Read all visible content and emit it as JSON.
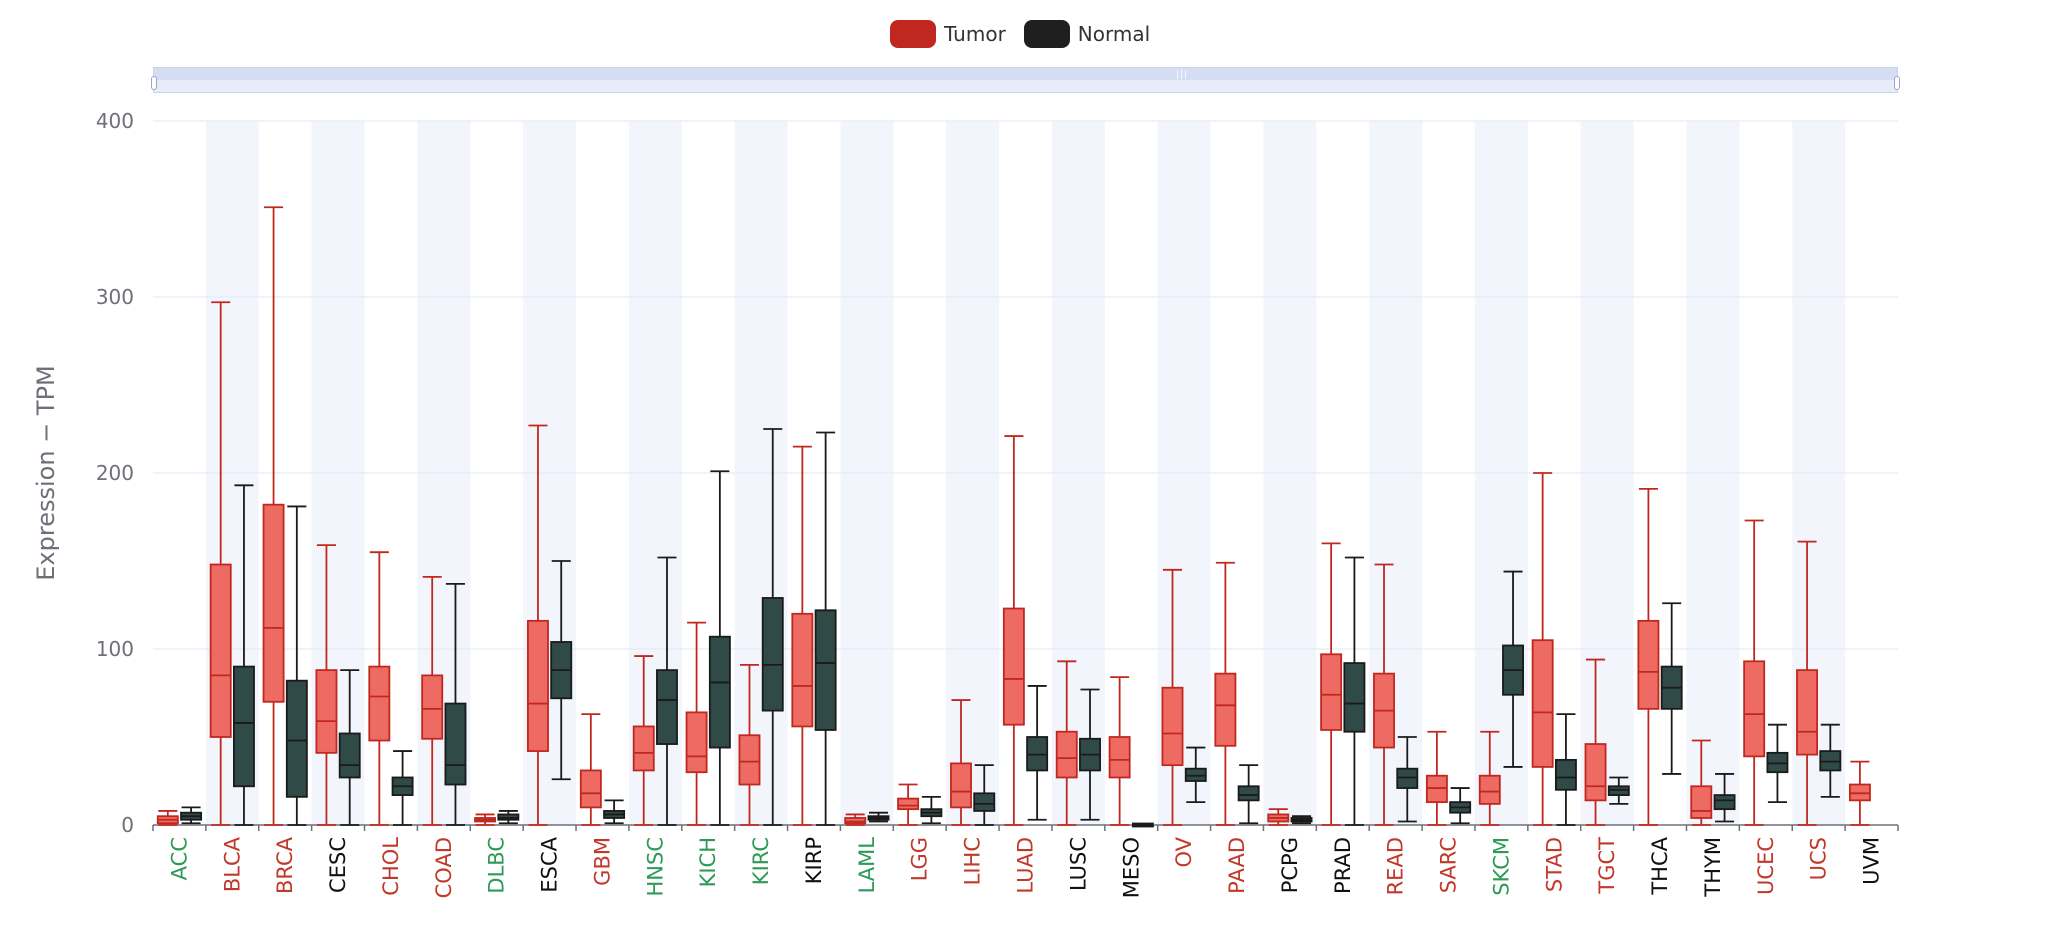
{
  "legend": {
    "items": [
      {
        "label": "Tumor",
        "color": "#c0281f"
      },
      {
        "label": "Normal",
        "color": "#1f1f1f"
      }
    ]
  },
  "chart_data": {
    "type": "boxplot",
    "ylabel": "Expression − TPM",
    "ylim": [
      0,
      400
    ],
    "yticks": [
      0,
      100,
      200,
      300,
      400
    ],
    "grid": true,
    "legend_position": "top-center",
    "colors": {
      "tumor_fill": "#ee6b63",
      "tumor_stroke": "#c0281f",
      "normal_fill": "#2f4a47",
      "normal_stroke": "#1a1a1a",
      "label_up": "#c0392b",
      "label_down": "#2e9a57",
      "label_ns": "#111111",
      "band": "#f2f5fb"
    },
    "categories": [
      {
        "name": "ACC",
        "status": "down",
        "tumor": [
          0,
          1,
          3,
          5,
          8
        ],
        "normal": [
          1,
          3,
          5,
          7,
          10
        ]
      },
      {
        "name": "BLCA",
        "status": "up",
        "tumor": [
          0,
          50,
          85,
          148,
          297
        ],
        "normal": [
          0,
          22,
          58,
          90,
          193
        ]
      },
      {
        "name": "BRCA",
        "status": "up",
        "tumor": [
          0,
          70,
          112,
          182,
          351
        ],
        "normal": [
          0,
          16,
          48,
          82,
          181
        ]
      },
      {
        "name": "CESC",
        "status": "ns",
        "tumor": [
          0,
          41,
          59,
          88,
          159
        ],
        "normal": [
          0,
          27,
          34,
          52,
          88
        ]
      },
      {
        "name": "CHOL",
        "status": "up",
        "tumor": [
          0,
          48,
          73,
          90,
          155
        ],
        "normal": [
          0,
          17,
          22,
          27,
          42
        ]
      },
      {
        "name": "COAD",
        "status": "up",
        "tumor": [
          0,
          49,
          66,
          85,
          141
        ],
        "normal": [
          0,
          23,
          34,
          69,
          137
        ]
      },
      {
        "name": "DLBC",
        "status": "down",
        "tumor": [
          0,
          2,
          3,
          4,
          6
        ],
        "normal": [
          1,
          3,
          4,
          6,
          8
        ]
      },
      {
        "name": "ESCA",
        "status": "ns",
        "tumor": [
          0,
          42,
          69,
          116,
          227
        ],
        "normal": [
          26,
          72,
          88,
          104,
          150
        ]
      },
      {
        "name": "GBM",
        "status": "up",
        "tumor": [
          0,
          10,
          18,
          31,
          63
        ],
        "normal": [
          1,
          4,
          6,
          8,
          14
        ]
      },
      {
        "name": "HNSC",
        "status": "down",
        "tumor": [
          0,
          31,
          41,
          56,
          96
        ],
        "normal": [
          0,
          46,
          71,
          88,
          152
        ]
      },
      {
        "name": "KICH",
        "status": "down",
        "tumor": [
          0,
          30,
          39,
          64,
          115
        ],
        "normal": [
          0,
          44,
          81,
          107,
          201
        ]
      },
      {
        "name": "KIRC",
        "status": "down",
        "tumor": [
          0,
          23,
          36,
          51,
          91
        ],
        "normal": [
          0,
          65,
          91,
          129,
          225
        ]
      },
      {
        "name": "KIRP",
        "status": "ns",
        "tumor": [
          0,
          56,
          79,
          120,
          215
        ],
        "normal": [
          0,
          54,
          92,
          122,
          223
        ]
      },
      {
        "name": "LAML",
        "status": "down",
        "tumor": [
          0,
          1,
          2,
          4,
          6
        ],
        "normal": [
          2,
          3,
          4,
          5,
          7
        ]
      },
      {
        "name": "LGG",
        "status": "up",
        "tumor": [
          0,
          9,
          11,
          15,
          23
        ],
        "normal": [
          1,
          5,
          7,
          9,
          16
        ]
      },
      {
        "name": "LIHC",
        "status": "up",
        "tumor": [
          0,
          10,
          19,
          35,
          71
        ],
        "normal": [
          0,
          8,
          12,
          18,
          34
        ]
      },
      {
        "name": "LUAD",
        "status": "up",
        "tumor": [
          0,
          57,
          83,
          123,
          221
        ],
        "normal": [
          3,
          31,
          40,
          50,
          79
        ]
      },
      {
        "name": "LUSC",
        "status": "ns",
        "tumor": [
          0,
          27,
          38,
          53,
          93
        ],
        "normal": [
          3,
          31,
          40,
          49,
          77
        ]
      },
      {
        "name": "MESO",
        "status": "ns",
        "tumor": [
          0,
          27,
          37,
          50,
          84
        ],
        "normal": [
          0,
          0,
          0,
          0,
          0
        ]
      },
      {
        "name": "OV",
        "status": "up",
        "tumor": [
          0,
          34,
          52,
          78,
          145
        ],
        "normal": [
          13,
          25,
          28,
          32,
          44
        ]
      },
      {
        "name": "PAAD",
        "status": "up",
        "tumor": [
          0,
          45,
          68,
          86,
          149
        ],
        "normal": [
          1,
          14,
          17,
          22,
          34
        ]
      },
      {
        "name": "PCPG",
        "status": "ns",
        "tumor": [
          0,
          2,
          4,
          6,
          9
        ],
        "normal": [
          1,
          2,
          3,
          4,
          5
        ]
      },
      {
        "name": "PRAD",
        "status": "ns",
        "tumor": [
          0,
          54,
          74,
          97,
          160
        ],
        "normal": [
          0,
          53,
          69,
          92,
          152
        ]
      },
      {
        "name": "READ",
        "status": "up",
        "tumor": [
          0,
          44,
          65,
          86,
          148
        ],
        "normal": [
          2,
          21,
          27,
          32,
          50
        ]
      },
      {
        "name": "SARC",
        "status": "up",
        "tumor": [
          0,
          13,
          21,
          28,
          53
        ],
        "normal": [
          1,
          7,
          10,
          13,
          21
        ]
      },
      {
        "name": "SKCM",
        "status": "down",
        "tumor": [
          0,
          12,
          19,
          28,
          53
        ],
        "normal": [
          33,
          74,
          88,
          102,
          144
        ]
      },
      {
        "name": "STAD",
        "status": "up",
        "tumor": [
          0,
          33,
          64,
          105,
          200
        ],
        "normal": [
          0,
          20,
          27,
          37,
          63
        ]
      },
      {
        "name": "TGCT",
        "status": "up",
        "tumor": [
          0,
          14,
          22,
          46,
          94
        ],
        "normal": [
          12,
          17,
          20,
          22,
          27
        ]
      },
      {
        "name": "THCA",
        "status": "ns",
        "tumor": [
          0,
          66,
          87,
          116,
          191
        ],
        "normal": [
          29,
          66,
          78,
          90,
          126
        ]
      },
      {
        "name": "THYM",
        "status": "ns",
        "tumor": [
          0,
          4,
          8,
          22,
          48
        ],
        "normal": [
          2,
          9,
          14,
          17,
          29
        ]
      },
      {
        "name": "UCEC",
        "status": "up",
        "tumor": [
          0,
          39,
          63,
          93,
          173
        ],
        "normal": [
          13,
          30,
          35,
          41,
          57
        ]
      },
      {
        "name": "UCS",
        "status": "up",
        "tumor": [
          0,
          40,
          53,
          88,
          161
        ],
        "normal": [
          16,
          31,
          36,
          42,
          57
        ]
      },
      {
        "name": "UVM",
        "status": "ns",
        "tumor": [
          0,
          14,
          18,
          23,
          36
        ],
        "normal": null
      }
    ]
  }
}
